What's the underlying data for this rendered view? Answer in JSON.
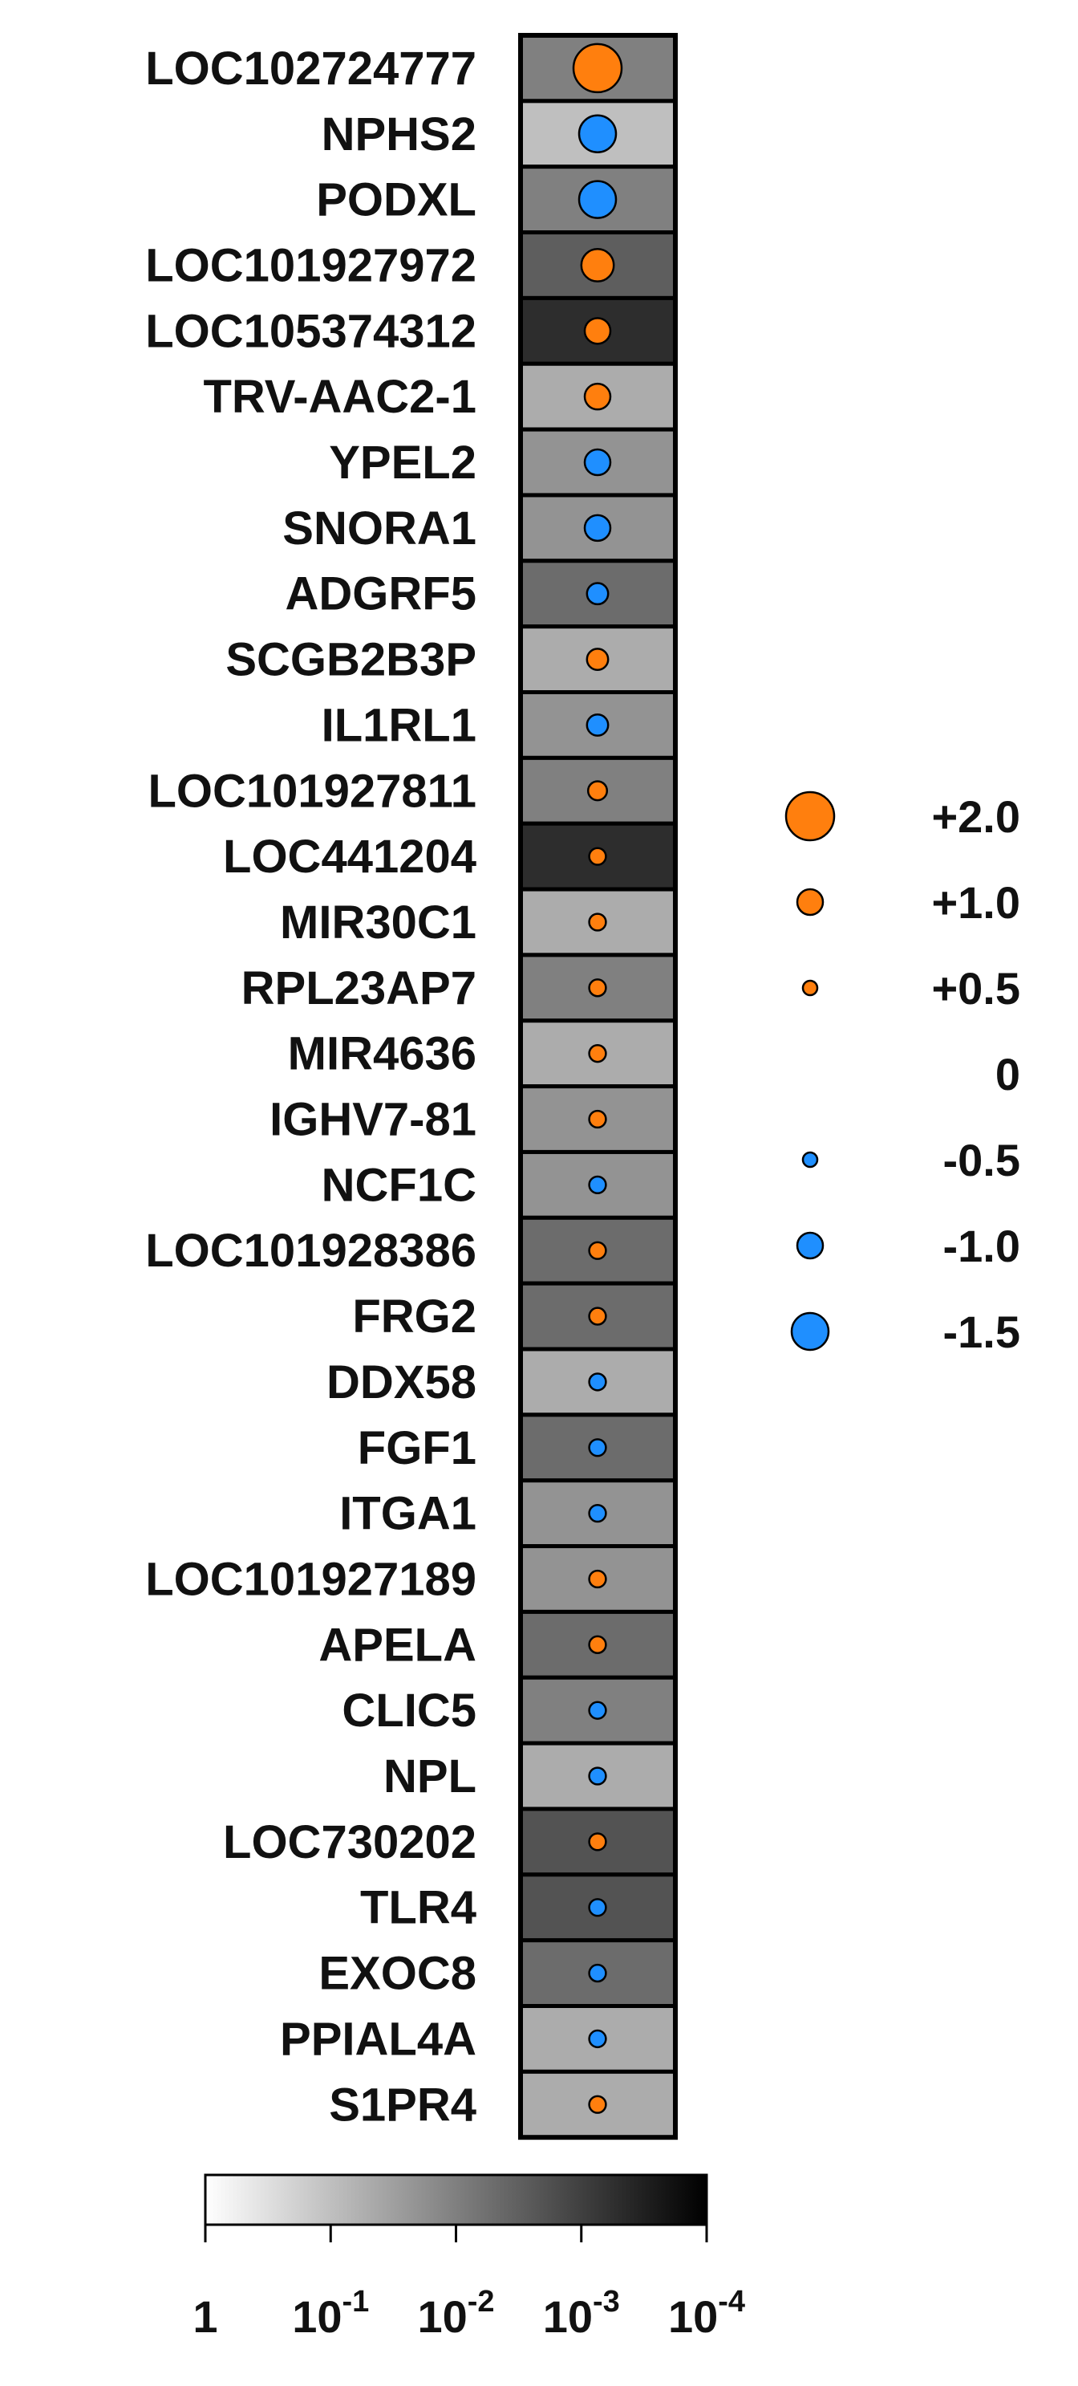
{
  "chart_data": {
    "type": "heatmap",
    "genes": [
      {
        "name": "LOC102724777",
        "fold_change": 2.0,
        "p_value": 0.01
      },
      {
        "name": "NPHS2",
        "fold_change": -1.5,
        "p_value": 0.1
      },
      {
        "name": "PODXL",
        "fold_change": -1.5,
        "p_value": 0.01
      },
      {
        "name": "LOC101927972",
        "fold_change": 1.3,
        "p_value": 0.003
      },
      {
        "name": "LOC105374312",
        "fold_change": 1.0,
        "p_value": 0.0005
      },
      {
        "name": "TRV-AAC2-1",
        "fold_change": 1.0,
        "p_value": 0.05
      },
      {
        "name": "YPEL2",
        "fold_change": -1.0,
        "p_value": 0.02
      },
      {
        "name": "SNORA1",
        "fold_change": -1.0,
        "p_value": 0.02
      },
      {
        "name": "ADGRF5",
        "fold_change": -0.8,
        "p_value": 0.005
      },
      {
        "name": "SCGB2B3P",
        "fold_change": 0.8,
        "p_value": 0.05
      },
      {
        "name": "IL1RL1",
        "fold_change": -0.8,
        "p_value": 0.02
      },
      {
        "name": "LOC101927811",
        "fold_change": 0.7,
        "p_value": 0.01
      },
      {
        "name": "LOC441204",
        "fold_change": 0.6,
        "p_value": 0.0005
      },
      {
        "name": "MIR30C1",
        "fold_change": 0.6,
        "p_value": 0.05
      },
      {
        "name": "RPL23AP7",
        "fold_change": 0.6,
        "p_value": 0.01
      },
      {
        "name": "MIR4636",
        "fold_change": 0.6,
        "p_value": 0.05
      },
      {
        "name": "IGHV7-81",
        "fold_change": 0.6,
        "p_value": 0.02
      },
      {
        "name": "NCF1C",
        "fold_change": -0.6,
        "p_value": 0.02
      },
      {
        "name": "LOC101928386",
        "fold_change": 0.6,
        "p_value": 0.005
      },
      {
        "name": "FRG2",
        "fold_change": 0.6,
        "p_value": 0.005
      },
      {
        "name": "DDX58",
        "fold_change": -0.6,
        "p_value": 0.05
      },
      {
        "name": "FGF1",
        "fold_change": -0.6,
        "p_value": 0.005
      },
      {
        "name": "ITGA1",
        "fold_change": -0.6,
        "p_value": 0.02
      },
      {
        "name": "LOC101927189",
        "fold_change": 0.6,
        "p_value": 0.02
      },
      {
        "name": "APELA",
        "fold_change": 0.6,
        "p_value": 0.005
      },
      {
        "name": "CLIC5",
        "fold_change": -0.6,
        "p_value": 0.01
      },
      {
        "name": "NPL",
        "fold_change": -0.6,
        "p_value": 0.05
      },
      {
        "name": "LOC730202",
        "fold_change": 0.6,
        "p_value": 0.002
      },
      {
        "name": "TLR4",
        "fold_change": -0.6,
        "p_value": 0.002
      },
      {
        "name": "EXOC8",
        "fold_change": -0.6,
        "p_value": 0.005
      },
      {
        "name": "PPIAL4A",
        "fold_change": -0.6,
        "p_value": 0.05
      },
      {
        "name": "S1PR4",
        "fold_change": 0.6,
        "p_value": 0.05
      }
    ],
    "size_legend": [
      {
        "label": "+2.0",
        "value": 2.0
      },
      {
        "label": "+1.0",
        "value": 1.0
      },
      {
        "label": "+0.5",
        "value": 0.5
      },
      {
        "label": "0",
        "value": 0
      },
      {
        "label": "-0.5",
        "value": -0.5
      },
      {
        "label": "-1.0",
        "value": -1.0
      },
      {
        "label": "-1.5",
        "value": -1.5
      }
    ],
    "color_scale": {
      "ticks": [
        {
          "base": "1",
          "exp": "",
          "value": 1
        },
        {
          "base": "10",
          "exp": "-1",
          "value": 0.1
        },
        {
          "base": "10",
          "exp": "-2",
          "value": 0.01
        },
        {
          "base": "10",
          "exp": "-3",
          "value": 0.001
        },
        {
          "base": "10",
          "exp": "-4",
          "value": 0.0001
        }
      ],
      "range": [
        1,
        0.0001
      ],
      "log_scale": true,
      "gradient_colors": [
        "#ffffff",
        "#000000"
      ]
    },
    "colors": {
      "positive": "#ff7f0e",
      "negative": "#1f8fff",
      "border": "#000000"
    }
  }
}
